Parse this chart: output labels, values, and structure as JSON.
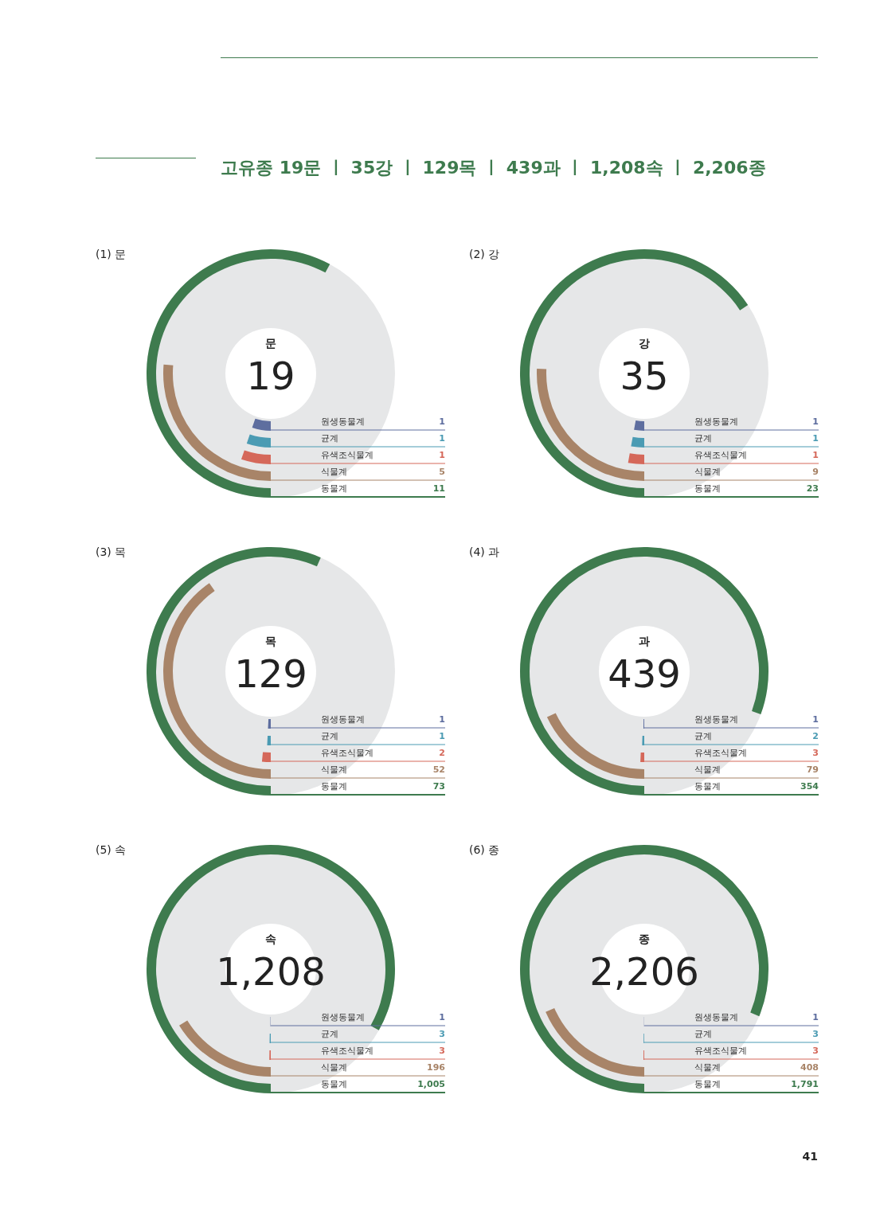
{
  "chart_data": [
    {
      "type": "other",
      "title": "고유종 19문 ㅣ 35강 ㅣ 129목 ㅣ 439과 ㅣ 1,208속 ㅣ 2,206종",
      "annotations": [
        "41"
      ]
    },
    {
      "type": "other",
      "title": "(1) 문",
      "annotations": [
        "문",
        "19"
      ],
      "categories": [
        "원생동물계",
        "균계",
        "유색조식물계",
        "식물계",
        "동물계"
      ],
      "values": [
        1,
        1,
        1,
        5,
        11
      ],
      "value_labels": [
        "1",
        "1",
        "1",
        "5",
        "11"
      ],
      "colors": [
        "#5e6e9f",
        "#4b9bb3",
        "#d5685a",
        "#a88468",
        "#3e7b4e"
      ]
    },
    {
      "type": "other",
      "title": "(2) 강",
      "annotations": [
        "강",
        "35"
      ],
      "categories": [
        "원생동물계",
        "균계",
        "유색조식물계",
        "식물계",
        "동물계"
      ],
      "values": [
        1,
        1,
        1,
        9,
        23
      ],
      "value_labels": [
        "1",
        "1",
        "1",
        "9",
        "23"
      ],
      "colors": [
        "#5e6e9f",
        "#4b9bb3",
        "#d5685a",
        "#a88468",
        "#3e7b4e"
      ]
    },
    {
      "type": "other",
      "title": "(3) 목",
      "annotations": [
        "목",
        "129"
      ],
      "categories": [
        "원생동물계",
        "균계",
        "유색조식물계",
        "식물계",
        "동물계"
      ],
      "values": [
        1,
        1,
        2,
        52,
        73
      ],
      "value_labels": [
        "1",
        "1",
        "2",
        "52",
        "73"
      ],
      "colors": [
        "#5e6e9f",
        "#4b9bb3",
        "#d5685a",
        "#a88468",
        "#3e7b4e"
      ]
    },
    {
      "type": "other",
      "title": "(4) 과",
      "annotations": [
        "과",
        "439"
      ],
      "categories": [
        "원생동물계",
        "균계",
        "유색조식물계",
        "식물계",
        "동물계"
      ],
      "values": [
        1,
        2,
        3,
        79,
        354
      ],
      "value_labels": [
        "1",
        "2",
        "3",
        "79",
        "354"
      ],
      "colors": [
        "#5e6e9f",
        "#4b9bb3",
        "#d5685a",
        "#a88468",
        "#3e7b4e"
      ]
    },
    {
      "type": "other",
      "title": "(5) 속",
      "annotations": [
        "속",
        "1,208"
      ],
      "categories": [
        "원생동물계",
        "균계",
        "유색조식물계",
        "식물계",
        "동물계"
      ],
      "values": [
        1,
        3,
        3,
        196,
        1005
      ],
      "value_labels": [
        "1",
        "3",
        "3",
        "196",
        "1,005"
      ],
      "colors": [
        "#5e6e9f",
        "#4b9bb3",
        "#d5685a",
        "#a88468",
        "#3e7b4e"
      ]
    },
    {
      "type": "other",
      "title": "(6) 종",
      "annotations": [
        "종",
        "2,206"
      ],
      "categories": [
        "원생동물계",
        "균계",
        "유색조식물계",
        "식물계",
        "동물계"
      ],
      "values": [
        1,
        3,
        3,
        408,
        1791
      ],
      "value_labels": [
        "1",
        "3",
        "3",
        "408",
        "1,791"
      ],
      "colors": [
        "#5e6e9f",
        "#4b9bb3",
        "#d5685a",
        "#a88468",
        "#3e7b4e"
      ]
    }
  ]
}
